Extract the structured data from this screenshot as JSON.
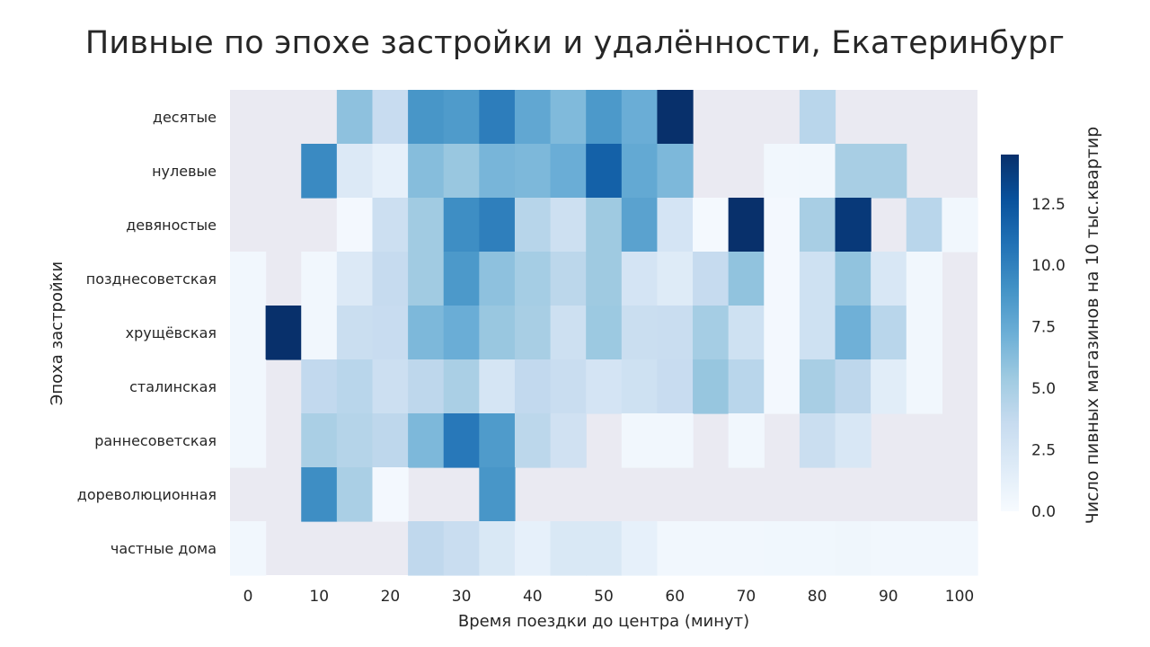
{
  "chart_data": {
    "type": "heatmap",
    "title": "Пивные по эпохе застройки и удалённости, Екатеринбург",
    "xlabel": "Время поездки до центра (минут)",
    "ylabel": "Эпоха застройки",
    "x_ticks": [
      "0",
      "10",
      "20",
      "30",
      "40",
      "50",
      "60",
      "70",
      "80",
      "90",
      "100"
    ],
    "x_bins": [
      0,
      5,
      10,
      15,
      20,
      25,
      30,
      35,
      40,
      45,
      50,
      55,
      60,
      65,
      70,
      75,
      80,
      85,
      90,
      95,
      100
    ],
    "rows": [
      "десятые",
      "нулевые",
      "девяностые",
      "позднесоветская",
      "хрущёвская",
      "сталинская",
      "раннесоветская",
      "дореволюционная",
      "частные дома"
    ],
    "values": [
      [
        null,
        null,
        null,
        6.0,
        3.5,
        8.8,
        8.5,
        10.2,
        7.7,
        6.5,
        8.6,
        7.3,
        14.5,
        null,
        null,
        null,
        4.2,
        null,
        null,
        null,
        null
      ],
      [
        null,
        null,
        9.5,
        2.0,
        1.2,
        6.3,
        5.6,
        6.8,
        6.6,
        7.3,
        11.8,
        7.6,
        6.6,
        null,
        null,
        0.4,
        0.4,
        5.0,
        5.0,
        null,
        null
      ],
      [
        null,
        null,
        null,
        0.3,
        3.2,
        5.3,
        9.3,
        10.1,
        4.3,
        3.1,
        5.4,
        8.0,
        2.6,
        0.2,
        14.5,
        0.3,
        5.0,
        14.0,
        null,
        4.2,
        0.4
      ],
      [
        0.4,
        null,
        0.4,
        2.0,
        3.6,
        5.3,
        8.6,
        6.0,
        5.1,
        4.1,
        5.4,
        2.6,
        1.8,
        3.6,
        5.9,
        0.3,
        3.0,
        5.9,
        2.3,
        0.4,
        null
      ],
      [
        0.4,
        14.5,
        0.4,
        3.3,
        3.5,
        6.6,
        7.3,
        5.6,
        5.0,
        3.1,
        5.5,
        3.3,
        3.4,
        5.1,
        3.0,
        0.3,
        3.0,
        7.1,
        4.2,
        0.4,
        null
      ],
      [
        0.4,
        null,
        3.8,
        4.2,
        3.2,
        4.0,
        4.9,
        2.5,
        3.8,
        3.4,
        2.6,
        3.0,
        3.5,
        5.7,
        4.2,
        0.3,
        5.0,
        4.0,
        1.6,
        0.4,
        null
      ],
      [
        0.4,
        null,
        4.9,
        4.4,
        4.0,
        6.6,
        10.5,
        8.5,
        4.1,
        2.9,
        null,
        0.4,
        0.4,
        null,
        0.4,
        null,
        3.3,
        2.3,
        null,
        null,
        null
      ],
      [
        null,
        null,
        9.3,
        4.9,
        0.3,
        null,
        null,
        8.8,
        null,
        null,
        null,
        null,
        null,
        null,
        null,
        null,
        null,
        null,
        null,
        null,
        null
      ],
      [
        0.4,
        null,
        null,
        null,
        null,
        3.9,
        3.4,
        2.2,
        1.2,
        2.2,
        2.2,
        1.2,
        0.4,
        0.4,
        0.4,
        0.5,
        0.5,
        0.6,
        0.4,
        0.4,
        0.4
      ]
    ],
    "colorbar": {
      "label": "Число пивных магазинов на 10 тыс.квартир",
      "min": 0,
      "max": 14.5,
      "ticks": [
        "0.0",
        "2.5",
        "5.0",
        "7.5",
        "10.0",
        "12.5"
      ],
      "colormap": "Blues"
    },
    "background": "#eaeaf2",
    "grid": false
  }
}
